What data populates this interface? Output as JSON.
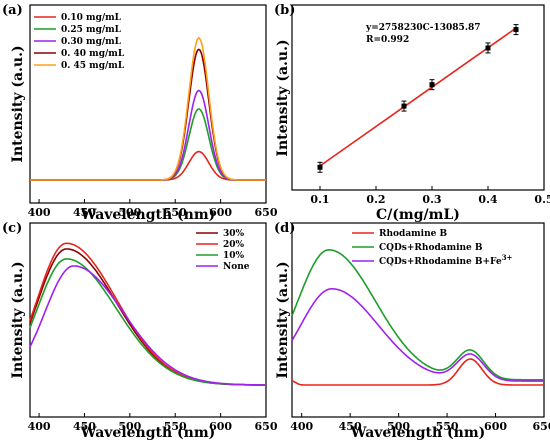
{
  "chart_data": [
    {
      "panel": "(a)",
      "type": "line",
      "xlabel": "Wavelength (nm)",
      "ylabel": "Intensity (a.u.)",
      "xlim": [
        390,
        650
      ],
      "ylim": [
        0,
        100
      ],
      "xticks": [
        400,
        450,
        500,
        550,
        600,
        650
      ],
      "legend_position": "top-left",
      "baseline": 3,
      "peak_center": 576,
      "peak_width": 11,
      "series": [
        {
          "name": "0.10 mg/mL",
          "color": "#e8251c",
          "peak": 20
        },
        {
          "name": "0.25 mg/mL",
          "color": "#1e9e28",
          "peak": 50
        },
        {
          "name": "0.30 mg/mL",
          "color": "#a020f0",
          "peak": 63
        },
        {
          "name": "0. 40 mg/mL",
          "color": "#8b0000",
          "peak": 92
        },
        {
          "name": "0. 45 mg/mL",
          "color": "#ff9f1a",
          "peak": 100
        }
      ]
    },
    {
      "panel": "(b)",
      "type": "scatter",
      "xlabel": "C/(mg/mL)",
      "ylabel": "Intensity (a.u.)",
      "xlim": [
        0.05,
        0.5
      ],
      "ylim": [
        0,
        1
      ],
      "xticks": [
        0.1,
        0.2,
        0.3,
        0.4,
        0.5
      ],
      "equation": "y=2758230C-13085.87",
      "r_value": "R=0.992",
      "fit_color": "#e8251c",
      "x": [
        0.1,
        0.25,
        0.3,
        0.4,
        0.45
      ],
      "y": [
        0.07,
        0.47,
        0.61,
        0.85,
        0.97
      ]
    },
    {
      "panel": "(c)",
      "type": "line",
      "xlabel": "Wavelength (nm)",
      "ylabel": "Intensity (a.u.)",
      "xlim": [
        390,
        650
      ],
      "ylim": [
        0,
        100
      ],
      "xticks": [
        400,
        450,
        500,
        550,
        600,
        650
      ],
      "legend_position": "top-right",
      "series": [
        {
          "name": "30%",
          "color": "#8b0000",
          "peak": 96,
          "center": 430,
          "start": 60
        },
        {
          "name": "20%",
          "color": "#e8251c",
          "peak": 100,
          "center": 430,
          "start": 64
        },
        {
          "name": "10%",
          "color": "#1e9e28",
          "peak": 89,
          "center": 430,
          "start": 55
        },
        {
          "name": "None",
          "color": "#a020f0",
          "peak": 84,
          "center": 438,
          "start": 37
        }
      ]
    },
    {
      "panel": "(d)",
      "type": "line",
      "xlabel": "Wavelength (nm)",
      "ylabel": "Intensity (a.u.)",
      "xlim": [
        390,
        650
      ],
      "ylim": [
        0,
        100
      ],
      "xticks": [
        400,
        450,
        500,
        550,
        600,
        650
      ],
      "legend_position": "top-right",
      "series": [
        {
          "name": "Rhodamine B",
          "color": "#e8251c"
        },
        {
          "name": "CQDs+Rhodamine B",
          "color": "#1e9e28"
        },
        {
          "name": "CQDs+Rhodamine B+Fe",
          "superscript": "3+",
          "color": "#a020f0"
        }
      ]
    }
  ]
}
